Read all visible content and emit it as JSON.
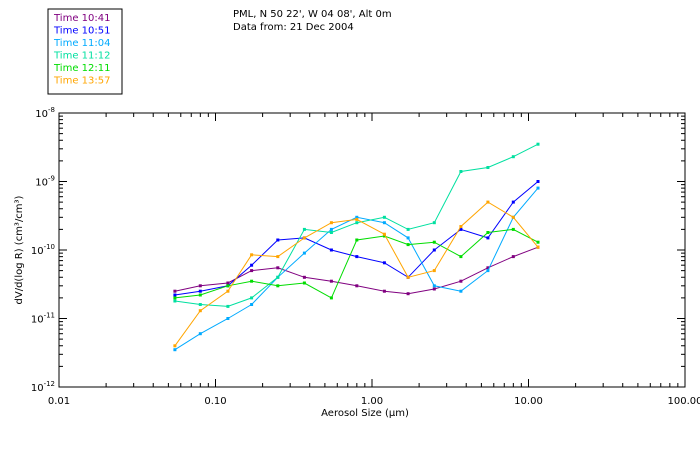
{
  "header": {
    "station": "PML, N 50 22', W 04 08', Alt 0m",
    "data_from": "Data from: 21 Dec 2004"
  },
  "chart_data": {
    "type": "line",
    "title": "PML, N 50 22', W 04 08', Alt 0m",
    "subtitle": "Data from: 21 Dec 2004",
    "xlabel_prefix": "Aerosol Size (",
    "xlabel_unit": "μm",
    "xlabel_suffix": ")",
    "ylabel": "dV/d(log R) (cm³/cm³)",
    "xscale": "log",
    "yscale": "log",
    "xlim": [
      0.01,
      100
    ],
    "ylim": [
      1e-12,
      1e-08
    ],
    "x_ticks": [
      {
        "value": 0.01,
        "label": "0.01"
      },
      {
        "value": 0.1,
        "label": "0.10"
      },
      {
        "value": 1,
        "label": "1.00"
      },
      {
        "value": 10,
        "label": "10.00"
      },
      {
        "value": 100,
        "label": "100.00"
      }
    ],
    "y_ticks": [
      {
        "value": 1e-08,
        "mant": "10",
        "exp": "-8"
      },
      {
        "value": 1e-09,
        "mant": "10",
        "exp": "-9"
      },
      {
        "value": 1e-10,
        "mant": "10",
        "exp": "-10"
      },
      {
        "value": 1e-11,
        "mant": "10",
        "exp": "-11"
      },
      {
        "value": 1e-12,
        "mant": "10",
        "exp": "-12"
      }
    ],
    "legend_position": "top-left",
    "x": [
      0.055,
      0.08,
      0.12,
      0.17,
      0.25,
      0.37,
      0.55,
      0.8,
      1.2,
      1.7,
      2.5,
      3.7,
      5.5,
      8.0,
      11.5
    ],
    "series": [
      {
        "name": "Time 10:41",
        "color": "#800080",
        "values": [
          2.5e-11,
          3e-11,
          3.3e-11,
          5e-11,
          5.5e-11,
          4e-11,
          3.5e-11,
          3e-11,
          2.5e-11,
          2.3e-11,
          2.7e-11,
          3.5e-11,
          5.5e-11,
          8e-11,
          1.1e-10
        ]
      },
      {
        "name": "Time 10:51",
        "color": "#0000ff",
        "values": [
          2.2e-11,
          2.5e-11,
          3e-11,
          6e-11,
          1.4e-10,
          1.5e-10,
          1e-10,
          8e-11,
          6.5e-11,
          4e-11,
          1e-10,
          2e-10,
          1.5e-10,
          5e-10,
          1e-09
        ]
      },
      {
        "name": "Time 11:04",
        "color": "#00aaff",
        "values": [
          3.5e-12,
          6e-12,
          1e-11,
          1.6e-11,
          4e-11,
          9e-11,
          2e-10,
          3e-10,
          2.5e-10,
          1.5e-10,
          3e-11,
          2.5e-11,
          5e-11,
          3e-10,
          8e-10
        ]
      },
      {
        "name": "Time 11:12",
        "color": "#00e0a0",
        "values": [
          1.8e-11,
          1.6e-11,
          1.5e-11,
          2e-11,
          4e-11,
          2e-10,
          1.8e-10,
          2.5e-10,
          3e-10,
          2e-10,
          2.5e-10,
          1.4e-09,
          1.6e-09,
          2.3e-09,
          3.5e-09
        ]
      },
      {
        "name": "Time 12:11",
        "color": "#00dd00",
        "values": [
          2e-11,
          2.2e-11,
          3e-11,
          3.5e-11,
          3e-11,
          3.3e-11,
          2e-11,
          1.4e-10,
          1.6e-10,
          1.2e-10,
          1.3e-10,
          8e-11,
          1.8e-10,
          2e-10,
          1.3e-10
        ]
      },
      {
        "name": "Time 13:57",
        "color": "#ffa500",
        "values": [
          4e-12,
          1.3e-11,
          2.5e-11,
          8.5e-11,
          8e-11,
          1.5e-10,
          2.5e-10,
          2.8e-10,
          1.7e-10,
          4e-11,
          5e-11,
          2.2e-10,
          5e-10,
          3e-10,
          1.1e-10
        ]
      }
    ]
  }
}
